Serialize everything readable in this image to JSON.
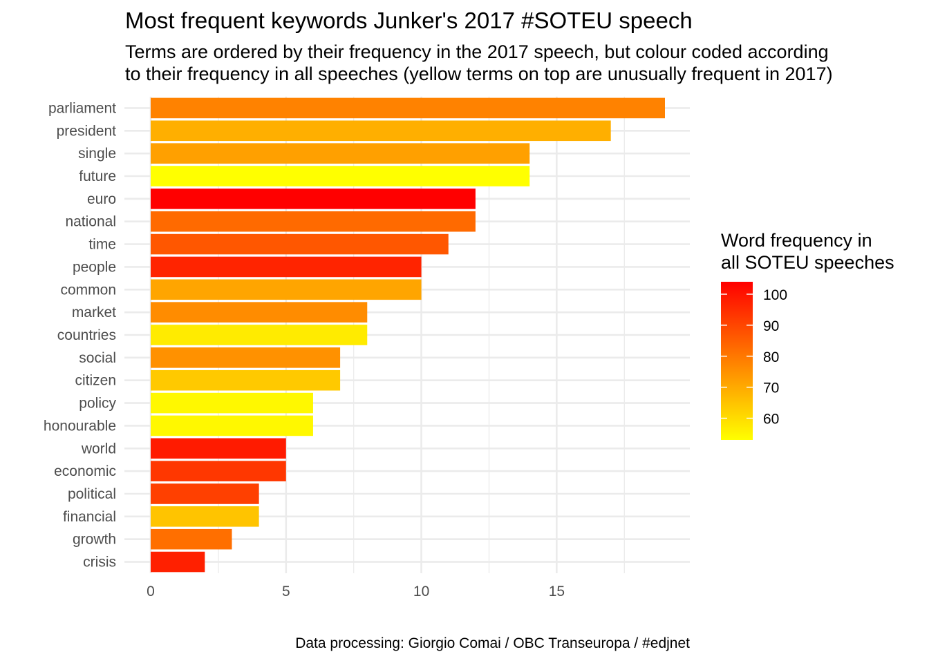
{
  "chart_data": {
    "type": "bar",
    "orientation": "horizontal",
    "title": "Most frequent keywords Junker's 2017 #SOTEU speech",
    "subtitle_lines": [
      "Terms are ordered by their frequency in the 2017 speech, but colour coded according",
      "to their frequency in all speeches (yellow terms on top are unusually frequent in 2017)"
    ],
    "caption": "Data processing:  Giorgio Comai / OBC Transeuropa / #edjnet",
    "xlabel": "",
    "ylabel": "",
    "xlim": [
      0,
      19
    ],
    "x_ticks": [
      0,
      5,
      10,
      15
    ],
    "grid": true,
    "categories": [
      "parliament",
      "president",
      "single",
      "future",
      "euro",
      "national",
      "time",
      "people",
      "common",
      "market",
      "countries",
      "social",
      "citizen",
      "policy",
      "honourable",
      "world",
      "economic",
      "political",
      "financial",
      "growth",
      "crisis"
    ],
    "values": [
      19,
      17,
      14,
      14,
      12,
      12,
      11,
      10,
      10,
      8,
      8,
      7,
      7,
      6,
      6,
      5,
      5,
      4,
      4,
      3,
      2
    ],
    "fill_values": [
      76,
      67,
      70,
      53,
      104,
      81,
      85,
      96,
      69,
      74,
      56,
      73,
      62,
      54,
      54,
      98,
      92,
      90,
      63,
      80,
      97
    ],
    "legend": {
      "title_lines": [
        "Word frequency in",
        "all SOTEU speeches"
      ],
      "position": "right",
      "range": [
        53,
        104
      ],
      "ticks": [
        100,
        90,
        80,
        70,
        60
      ],
      "color_low": "#ffff00",
      "color_high": "#ff0000"
    }
  }
}
